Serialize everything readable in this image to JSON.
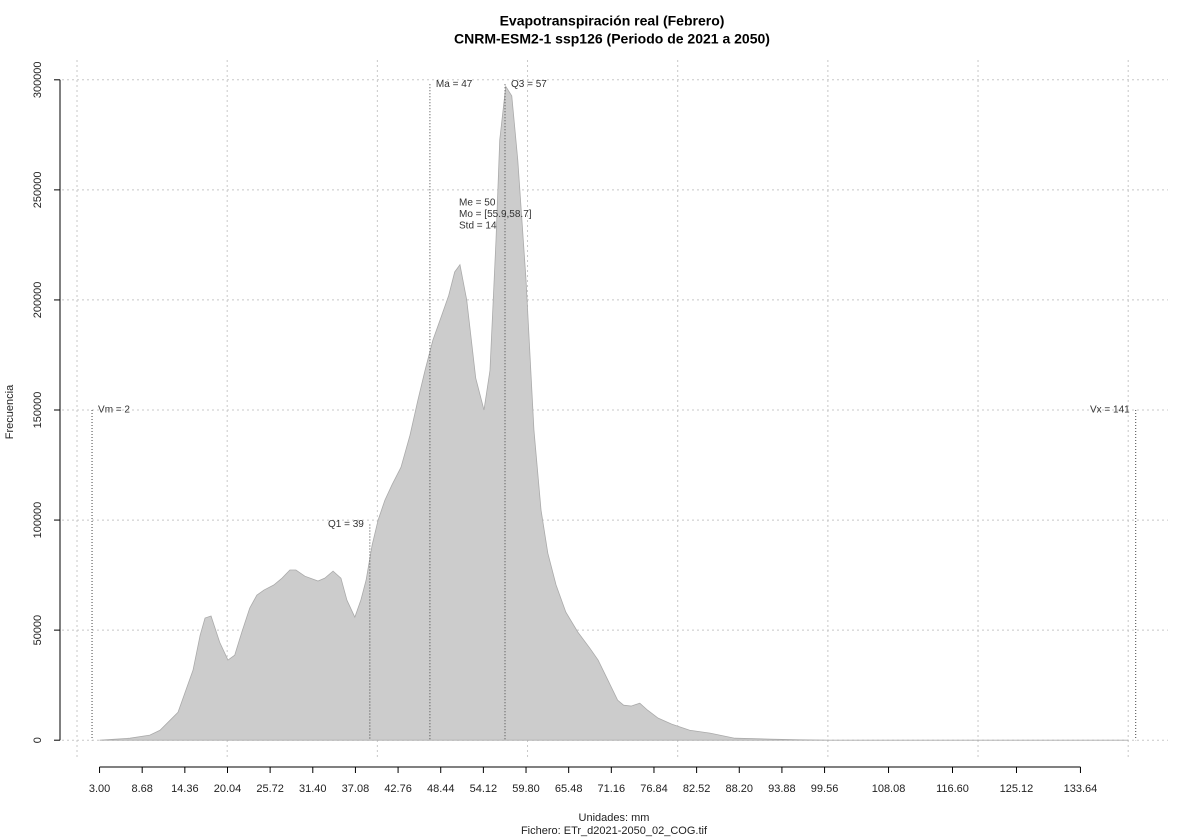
{
  "chart_data": {
    "type": "area",
    "title": "Evapotranspiración real (Febrero)",
    "subtitle": "CNRM-ESM2-1 ssp126 (Periodo de 2021 a 2050)",
    "xlabel": "Unidades: mm",
    "ylabel": "Frecuencia",
    "caption": "Fichero: ETr_d2021-2050_02_COG.tif",
    "color": "#cccccc",
    "x": [
      3.0,
      7.06,
      9.7,
      11.05,
      12.4,
      13.45,
      14.4,
      15.45,
      16.4,
      17.05,
      17.85,
      19.0,
      20.1,
      21.0,
      21.95,
      23.0,
      23.95,
      24.9,
      26.2,
      27.3,
      28.35,
      29.15,
      30.35,
      32.1,
      33.0,
      34.1,
      35.15,
      35.95,
      37.0,
      37.8,
      38.5,
      39.3,
      40.1,
      41.0,
      41.95,
      43.15,
      44.35,
      45.4,
      46.35,
      47.4,
      48.5,
      49.5,
      50.3,
      51.0,
      51.9,
      53.1,
      54.2,
      55.0,
      55.8,
      56.3,
      57.1,
      57.9,
      58.7,
      59.8,
      60.85,
      61.8,
      62.7,
      63.8,
      65.1,
      66.7,
      68.3,
      69.4,
      70.7,
      72.0,
      72.8,
      73.8,
      74.95,
      76.0,
      77.4,
      79.2,
      81.6,
      84.3,
      87.6,
      92.3,
      96.3,
      100.3,
      140
    ],
    "values": [
      0,
      900,
      2300,
      4500,
      9100,
      12700,
      21800,
      31800,
      47700,
      55500,
      56400,
      44500,
      36400,
      38600,
      49100,
      60000,
      65900,
      68200,
      70500,
      73600,
      77300,
      77300,
      74500,
      72300,
      73600,
      76800,
      73600,
      63600,
      55900,
      63600,
      72700,
      88600,
      100000,
      109000,
      116000,
      124000,
      138600,
      154500,
      168000,
      181800,
      192300,
      202000,
      212700,
      216000,
      200000,
      164500,
      150000,
      168000,
      227000,
      272700,
      297000,
      292700,
      263600,
      209000,
      141000,
      104500,
      85000,
      70500,
      58200,
      49100,
      41800,
      36400,
      27300,
      18200,
      15900,
      15500,
      16800,
      13600,
      10000,
      7300,
      4500,
      3200,
      900,
      500,
      200,
      0,
      0
    ],
    "xlim": [
      -2,
      145.3
    ],
    "ylim": [
      -9000,
      309000
    ],
    "xticks": [
      {
        "value": 3,
        "label": "3.00"
      },
      8.68,
      14.36,
      20.04,
      25.72,
      {
        "value": 31.4,
        "label": "31.40"
      },
      37.08,
      42.76,
      48.44,
      54.12,
      {
        "value": 59.8,
        "label": "59.80"
      },
      65.48,
      71.16,
      76.84,
      82.52,
      {
        "value": 88.2,
        "label": "88.20"
      },
      93.88,
      99.56,
      108.08,
      {
        "value": 116.6,
        "label": "116.60"
      },
      125.12,
      133.64
    ],
    "xgrid": [
      0,
      20,
      40,
      60,
      80,
      100,
      120,
      140
    ],
    "yticks": [
      0,
      50000,
      100000,
      150000,
      200000,
      250000,
      300000
    ],
    "grid": true,
    "markers": [
      {
        "label": "Vm = 2",
        "x": 2,
        "y": 150000
      },
      {
        "label": "Q1 = 39",
        "x": 39,
        "y": 98000
      },
      {
        "label": "Ma = 47",
        "x": 47,
        "y": 298000
      },
      {
        "label": "Q3 = 57",
        "x": 57,
        "y": 298000
      },
      {
        "label": "Vx = 141",
        "x": 141,
        "y": 150000
      }
    ],
    "stats": [
      "Me = 50",
      "Mo = [55.9,58.7]",
      "Std = 14"
    ]
  }
}
